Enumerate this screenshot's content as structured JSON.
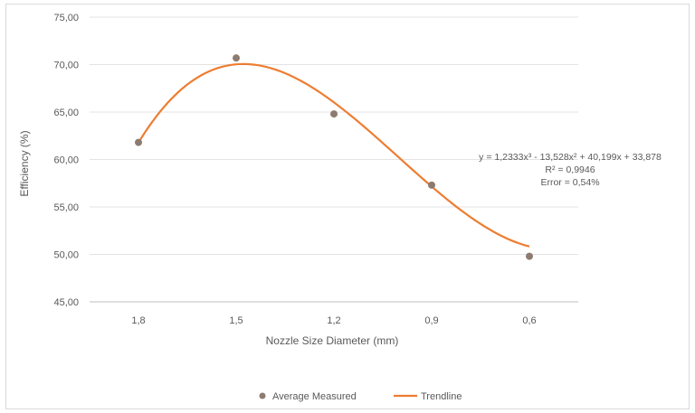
{
  "chart_data": {
    "type": "scatter",
    "title": "",
    "xlabel": "Nozzle Size Diameter  (mm)",
    "ylabel": "Efficiency (%)",
    "categories": [
      "1,8",
      "1,5",
      "1,2",
      "0,9",
      "0,6"
    ],
    "ylim": [
      45,
      75
    ],
    "yticks": [
      "45,00",
      "50,00",
      "55,00",
      "60,00",
      "65,00",
      "70,00",
      "75,00"
    ],
    "ytick_values": [
      45,
      50,
      55,
      60,
      65,
      70,
      75
    ],
    "grid": true,
    "legend_position": "bottom",
    "series": [
      {
        "name": "Average Measured",
        "kind": "scatter",
        "color": "#8c7b70",
        "values": [
          61.8,
          70.7,
          64.8,
          57.3,
          49.8
        ]
      },
      {
        "name": "Trendline",
        "kind": "polynomial-trendline",
        "color": "#ed7d31",
        "coefficients": [
          1.2333,
          -13.528,
          40.199,
          33.878
        ]
      }
    ],
    "annotation": {
      "equation": "y = 1,2333x³ - 13,528x² + 40,199x + 33,878",
      "r_squared": "R² = 0,9946",
      "error": "Error = 0,54%"
    }
  }
}
